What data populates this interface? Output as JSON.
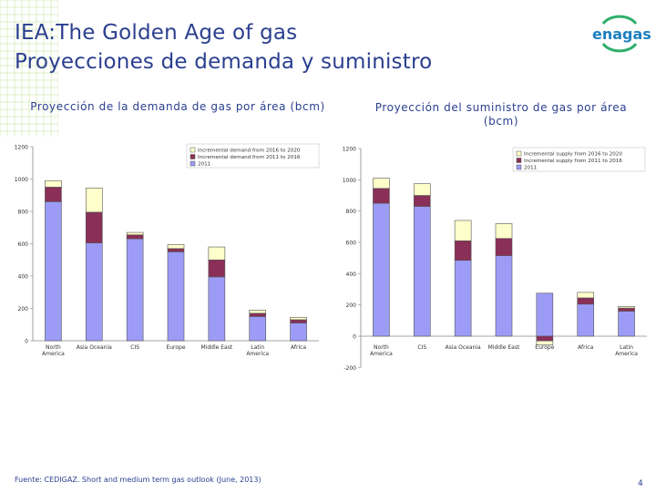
{
  "header": {
    "title_line1": "IEA:The Golden Age of gas",
    "title_line2": "Proyecciones de demanda y suministro",
    "logo_text": "enagas"
  },
  "colors": {
    "base_2011": "#9c9cf7",
    "incremental_2011_2016": "#8a2f57",
    "incremental_2016_2020": "#ffffcc",
    "title_blue": "#2a3f8f",
    "deco_green": "#8cc63f"
  },
  "chart_data": [
    {
      "type": "bar",
      "stacked": true,
      "title": "Proyección de la demanda de gas por área (bcm)",
      "categories": [
        "North America",
        "Asia Oceania",
        "CIS",
        "Europe",
        "Middle East",
        "Latin America",
        "Africa"
      ],
      "series": [
        {
          "name": "2011",
          "values": [
            860,
            605,
            630,
            550,
            395,
            150,
            110
          ]
        },
        {
          "name": "Incremental demand from 2011 to 2016",
          "values": [
            90,
            190,
            25,
            20,
            105,
            20,
            20
          ]
        },
        {
          "name": "Incremental demand from 2016 to 2020",
          "values": [
            40,
            150,
            15,
            25,
            80,
            20,
            15
          ]
        }
      ],
      "ylim": [
        0,
        1200
      ],
      "yticks": [
        0,
        200,
        400,
        600,
        800,
        1000,
        1200
      ],
      "legend_position": "top-right",
      "legend_order": [
        "Incremental demand from 2016 to 2020",
        "Incremental demand from 2011 to 2016",
        "2011"
      ]
    },
    {
      "type": "bar",
      "stacked": true,
      "title": "Proyección del suministro de gas por área (bcm)",
      "categories": [
        "North America",
        "CIS",
        "Asia Oceania",
        "Middle East",
        "Europe",
        "Africa",
        "Latin America"
      ],
      "series": [
        {
          "name": "2011",
          "values": [
            850,
            830,
            485,
            515,
            275,
            205,
            160
          ]
        },
        {
          "name": "Incremental supply from 2011 to 2016",
          "values": [
            95,
            70,
            125,
            110,
            -30,
            40,
            20
          ]
        },
        {
          "name": "Incremental supply from 2016 to 2020",
          "values": [
            65,
            75,
            130,
            95,
            -25,
            35,
            10
          ]
        }
      ],
      "ylim": [
        -200,
        1200
      ],
      "yticks": [
        -200,
        0,
        200,
        400,
        600,
        800,
        1000,
        1200
      ],
      "legend_position": "top-right",
      "legend_order": [
        "Incremental supply from 2016 to 2020",
        "Incremental supply from 2011 to 2016",
        "2011"
      ]
    }
  ],
  "footer": {
    "source": "Fuente: CEDIGAZ. Short and medium term gas outlook (June, 2013)",
    "page_number": "4"
  }
}
